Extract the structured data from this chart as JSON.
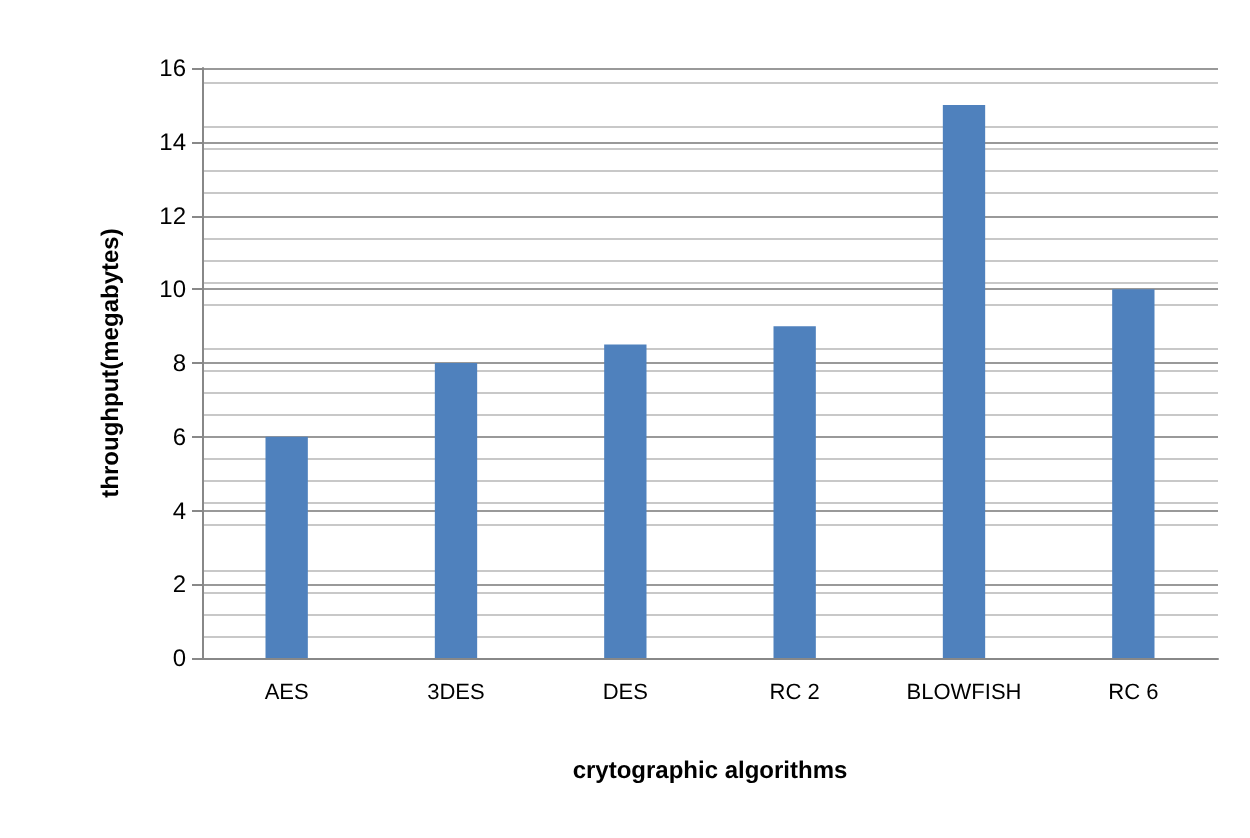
{
  "chart_data": {
    "type": "bar",
    "xlabel": "crytographic algorithms",
    "ylabel": "throughput(megabytes)",
    "categories": [
      "AES",
      "3DES",
      "DES",
      "RC 2",
      "BLOWFISH",
      "RC 6"
    ],
    "values": [
      6,
      8,
      8.5,
      9,
      15,
      10
    ],
    "color": "#4f81bd",
    "ylim": [
      0,
      16
    ],
    "yticks": [
      0,
      2,
      4,
      6,
      8,
      10,
      12,
      14,
      16
    ],
    "grid": "y"
  }
}
